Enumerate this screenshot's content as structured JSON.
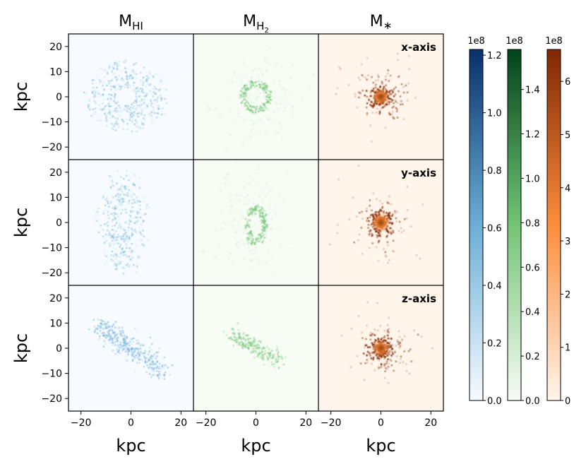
{
  "chart_data": {
    "type": "heatmap",
    "columns": [
      {
        "key": "HI",
        "title_main": "M",
        "title_sub": "HI",
        "colormap": "Blues",
        "colors": {
          "low": "#f7fbff",
          "mid": "#6baed6",
          "high": "#08306b"
        }
      },
      {
        "key": "H2",
        "title_main": "M",
        "title_sub": "H2",
        "colormap": "Greens",
        "colors": {
          "low": "#f7fcf5",
          "mid": "#74c476",
          "high": "#00441b"
        }
      },
      {
        "key": "star",
        "title_main": "M",
        "title_sub": "*",
        "colormap": "Oranges",
        "colors": {
          "low": "#fff5eb",
          "mid": "#fd8d3c",
          "high": "#7f2704"
        }
      }
    ],
    "rows": [
      {
        "label": "x-axis"
      },
      {
        "label": "y-axis"
      },
      {
        "label": "z-axis"
      }
    ],
    "xlabel": "kpc",
    "ylabel": "kpc",
    "xlim": [
      -25,
      25
    ],
    "ylim": [
      -25,
      25
    ],
    "xticks": [
      -20,
      0,
      20
    ],
    "yticks": [
      -20,
      -10,
      0,
      10,
      20
    ],
    "colorbars": [
      {
        "key": "HI",
        "exponent": "1e8",
        "max": 1.22,
        "ticks": [
          "0.0",
          "0.2",
          "0.4",
          "0.6",
          "0.8",
          "1.0",
          "1.2"
        ],
        "tick_values": [
          0,
          0.2,
          0.4,
          0.6,
          0.8,
          1.0,
          1.2
        ]
      },
      {
        "key": "H2",
        "exponent": "1e8",
        "max": 1.58,
        "ticks": [
          "0.0",
          "0.2",
          "0.4",
          "0.6",
          "0.8",
          "1.0",
          "1.2",
          "1.4"
        ],
        "tick_values": [
          0,
          0.2,
          0.4,
          0.6,
          0.8,
          1.0,
          1.2,
          1.4
        ]
      },
      {
        "key": "star",
        "exponent": "1e8",
        "max": 6.6,
        "ticks": [
          "0",
          "1",
          "2",
          "3",
          "4",
          "5",
          "6"
        ],
        "tick_values": [
          0,
          1,
          2,
          3,
          4,
          5,
          6
        ]
      }
    ]
  }
}
